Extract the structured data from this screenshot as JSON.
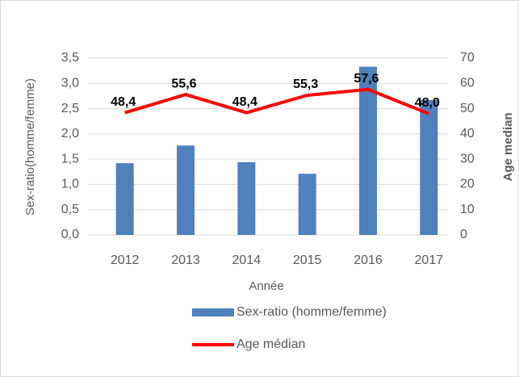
{
  "chart_data": {
    "type": "bar",
    "categories": [
      "2012",
      "2013",
      "2014",
      "2015",
      "2016",
      "2017"
    ],
    "x_label": "Année",
    "y_label": "Sex-ratio(homme/femme)",
    "y2_label": "Age median",
    "ylim": [
      0,
      3.5
    ],
    "yticks": [
      {
        "value": 0,
        "label": "0,0"
      },
      {
        "value": 0.5,
        "label": "0,5"
      },
      {
        "value": 1,
        "label": "1,0"
      },
      {
        "value": 1.5,
        "label": "1,5"
      },
      {
        "value": 2,
        "label": "2,0"
      },
      {
        "value": 2.5,
        "label": "2,5"
      },
      {
        "value": 3,
        "label": "3,0"
      },
      {
        "value": 3.5,
        "label": "3,5"
      }
    ],
    "y2lim": [
      0,
      70
    ],
    "y2ticks": [
      0,
      10,
      20,
      30,
      40,
      50,
      60,
      70
    ],
    "grid": true,
    "legend": "bottom",
    "series": [
      {
        "name": "Sex-ratio (homme/femme)",
        "type": "bar",
        "color": "#4f81bd",
        "values": [
          1.42,
          1.77,
          1.44,
          1.21,
          3.33,
          2.67
        ]
      },
      {
        "name": "Age médian",
        "type": "line",
        "axis": "y2",
        "color": "#ff0000",
        "values": [
          48.4,
          55.6,
          48.4,
          55.3,
          57.6,
          48.0
        ],
        "value_labels": [
          "48,4",
          "55,6",
          "48,4",
          "55,3",
          "57,6",
          "48,0"
        ]
      }
    ]
  }
}
